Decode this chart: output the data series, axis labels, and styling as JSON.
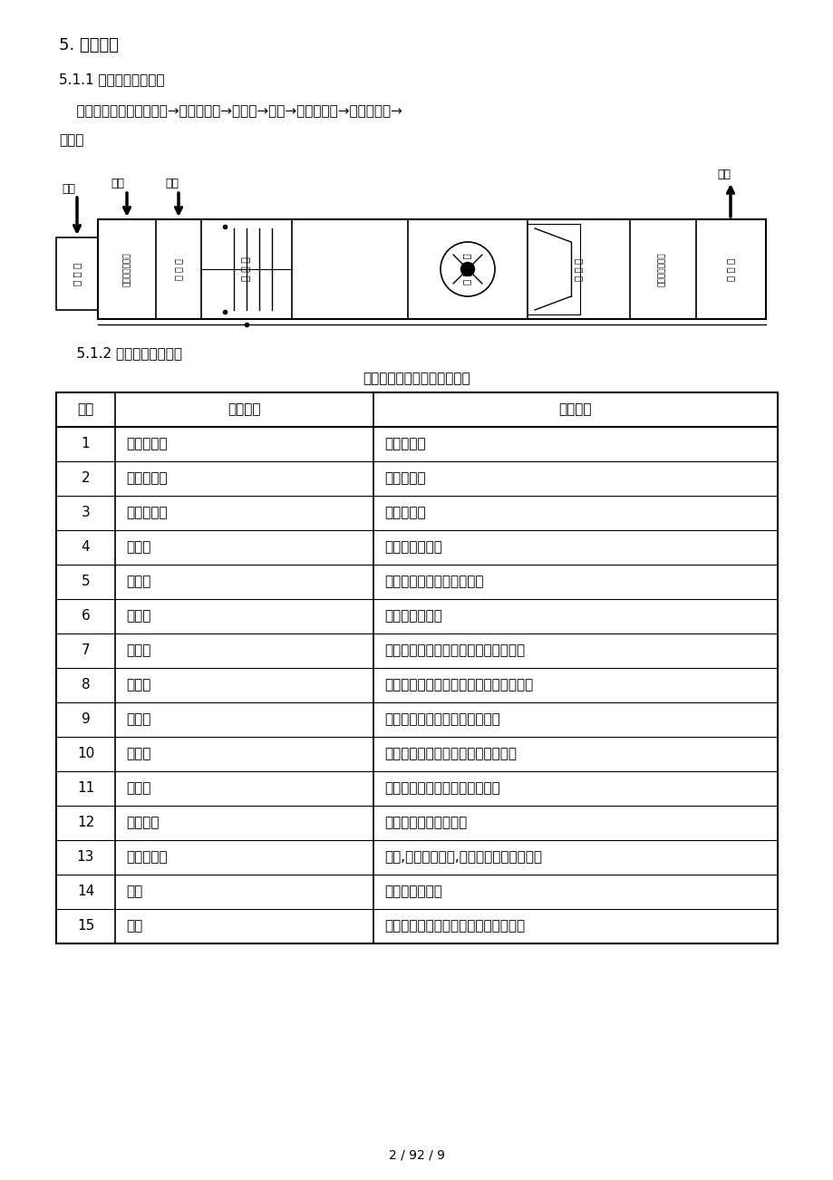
{
  "title_section": "5. 风险识别",
  "subtitle_section": "5.1.1 空调系统流程图：",
  "flow_text_line1": "    空气净化系统流程：新风→初效过滤器→表冷器→风机→中效过滤器→高效过滤器→",
  "flow_text_line2": "室内。",
  "section2": "    5.1.2 风险识别描述表：",
  "table_title": "空调净化系统风险识别描述表",
  "table_headers": [
    "序号",
    "风险识别",
    "风险描述"
  ],
  "table_rows": [
    [
      "1",
      "初效过滤器",
      "破损、堵塞"
    ],
    [
      "2",
      "中效过滤器",
      "破损、堵塞"
    ],
    [
      "3",
      "高效过滤器",
      "破损、堵塞"
    ],
    [
      "4",
      "加热器",
      "洁净室温度过低"
    ],
    [
      "5",
      "表冷器",
      "洁净室温度偏高或温度偏低"
    ],
    [
      "6",
      "加湿器",
      "洁净室湿度过低"
    ],
    [
      "7",
      "新风阀",
      "关闭，导致无新风补充，送风量不足。"
    ],
    [
      "8",
      "回风阀",
      "关闭，导致形成乱流，对环境造成污染。"
    ],
    [
      "9",
      "消防阀",
      "关闭，导致没有进风，影响压差"
    ],
    [
      "10",
      "内风机",
      "风机出现故障，导致风量下降或停机"
    ],
    [
      "11",
      "排风机",
      "排风机故障导致风量下降或停机"
    ],
    [
      "12",
      "风口布局",
      "洁净区流型分布不合理"
    ],
    [
      "13",
      "臭氧发生器",
      "故障,无法产生臭氧,车间环境微生物超标。"
    ],
    [
      "14",
      "风管",
      "漏风，风量减少"
    ],
    [
      "15",
      "停电",
      "空调系统停止运转，洁净级别无法保证"
    ]
  ],
  "page_footer": "2 / 92 / 9",
  "bg_color": "#ffffff",
  "text_color": "#000000"
}
